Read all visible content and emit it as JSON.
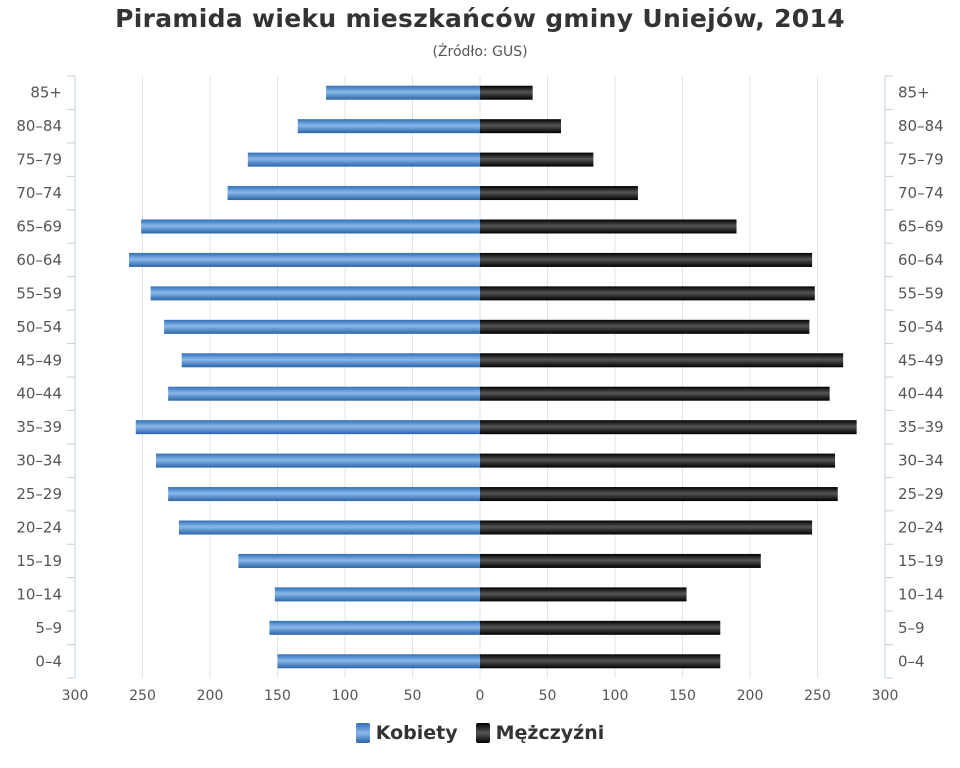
{
  "chart_data": {
    "type": "bar",
    "orientation": "horizontal",
    "title": "Piramida wieku mieszkańców gminy Uniejów, 2014",
    "subtitle": "(Źródło: GUS)",
    "categories": [
      "85+",
      "80–84",
      "75–79",
      "70–74",
      "65–69",
      "60–64",
      "55–59",
      "50–54",
      "45–49",
      "40–44",
      "35–39",
      "30–34",
      "25–29",
      "20–24",
      "15–19",
      "10–14",
      "5–9",
      "0–4"
    ],
    "series": [
      {
        "name": "Kobiety",
        "color": "#4a8ad4",
        "side": "left",
        "values": [
          114,
          135,
          172,
          187,
          251,
          260,
          244,
          234,
          221,
          231,
          255,
          240,
          231,
          223,
          179,
          152,
          156,
          150
        ]
      },
      {
        "name": "Mężczyźni",
        "color": "#1a1a1a",
        "side": "right",
        "values": [
          39,
          60,
          84,
          117,
          190,
          246,
          248,
          244,
          269,
          259,
          279,
          263,
          265,
          246,
          208,
          153,
          178,
          178
        ]
      }
    ],
    "xlim": [
      -300,
      300
    ],
    "xticks": [
      "300",
      "250",
      "200",
      "150",
      "100",
      "50",
      "0",
      "50",
      "100",
      "150",
      "200",
      "250",
      "300"
    ],
    "grid": true,
    "legend": "bottom-center"
  }
}
